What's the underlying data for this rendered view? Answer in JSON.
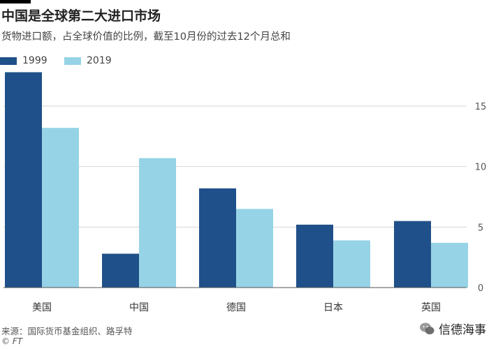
{
  "title": "中国是全球第二大进口市场",
  "subtitle": "货物进口额，占全球价值的比例，截至10月份的过去12个月总和",
  "source": "来源：国际货币基金组织、路孚特",
  "copyright": "© FT",
  "watermark": "信德海事",
  "chart_data": {
    "type": "bar",
    "categories": [
      "美国",
      "中国",
      "德国",
      "日本",
      "英国"
    ],
    "series": [
      {
        "name": "1999",
        "values": [
          17.8,
          2.8,
          8.2,
          5.2,
          5.5
        ],
        "color": "#1f5089"
      },
      {
        "name": "2019",
        "values": [
          13.2,
          10.7,
          6.5,
          3.9,
          3.7
        ],
        "color": "#96d3e6"
      }
    ],
    "ylim": [
      0,
      18
    ],
    "yticks": [
      0,
      5,
      10,
      15
    ],
    "ytick_labels": [
      "0",
      "5",
      "10",
      "15"
    ],
    "y_axis_side": "right",
    "grid": true,
    "legend": "top-left"
  }
}
